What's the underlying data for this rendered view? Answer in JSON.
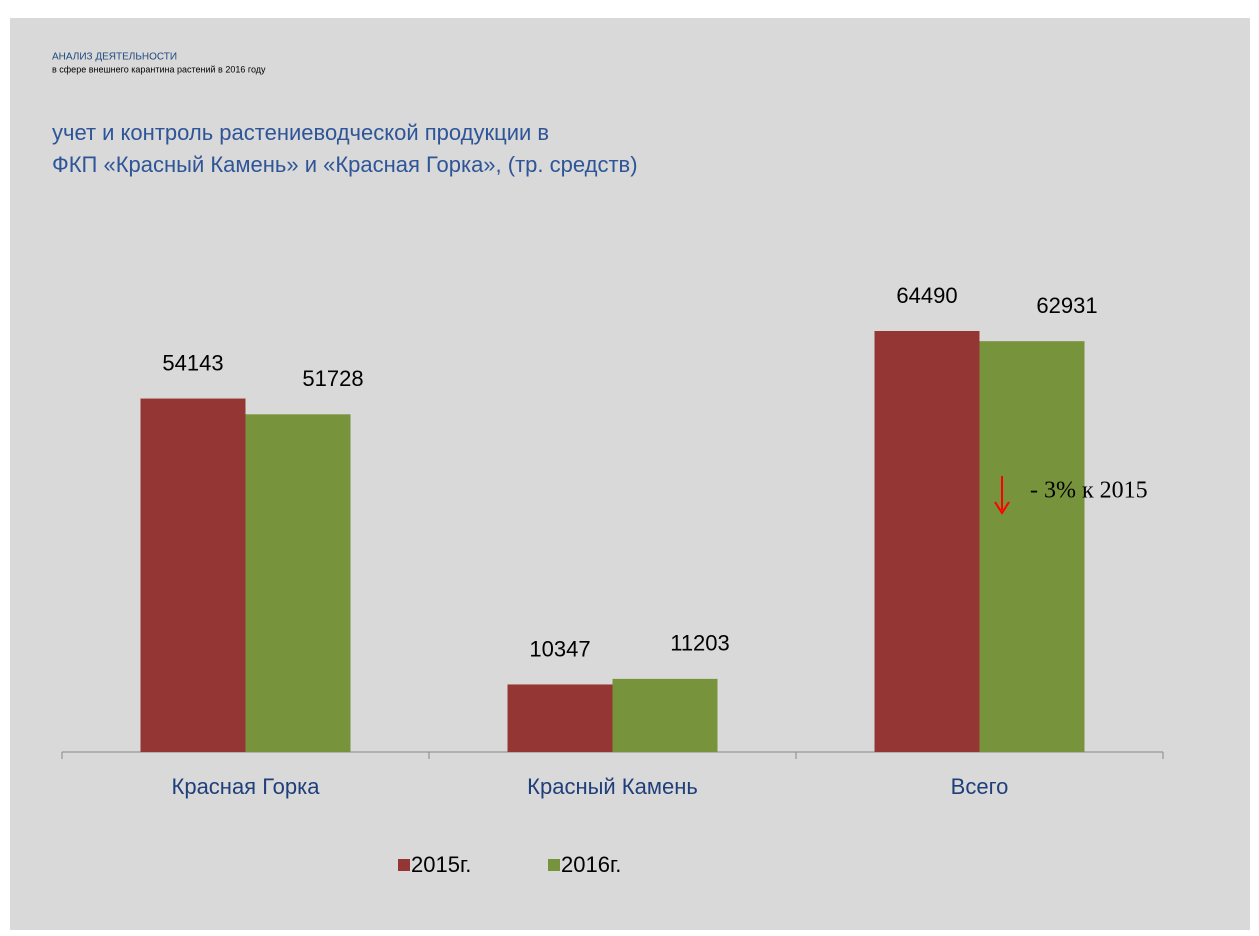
{
  "chart_data": {
    "type": "bar",
    "header": "АНАЛИЗ ДЕЯТЕЛЬНОСТИ",
    "subheader": "в сфере внешнего карантина растений в 2016 году",
    "title": [
      "учет и контроль  растениеводческой продукции в",
      "ФКП «Красный Камень» и «Красная Горка», (тр. средств)"
    ],
    "categories": [
      "Красная Горка",
      "Красный Камень",
      "Всего"
    ],
    "series": [
      {
        "name": "2015г.",
        "color": "#943634",
        "values": [
          54143,
          10347,
          64490
        ]
      },
      {
        "name": "2016г.",
        "color": "#77933c",
        "values": [
          51728,
          11203,
          62931
        ]
      }
    ],
    "annotation": "- 3% к 2015",
    "annotation_color": "#ff0000"
  }
}
